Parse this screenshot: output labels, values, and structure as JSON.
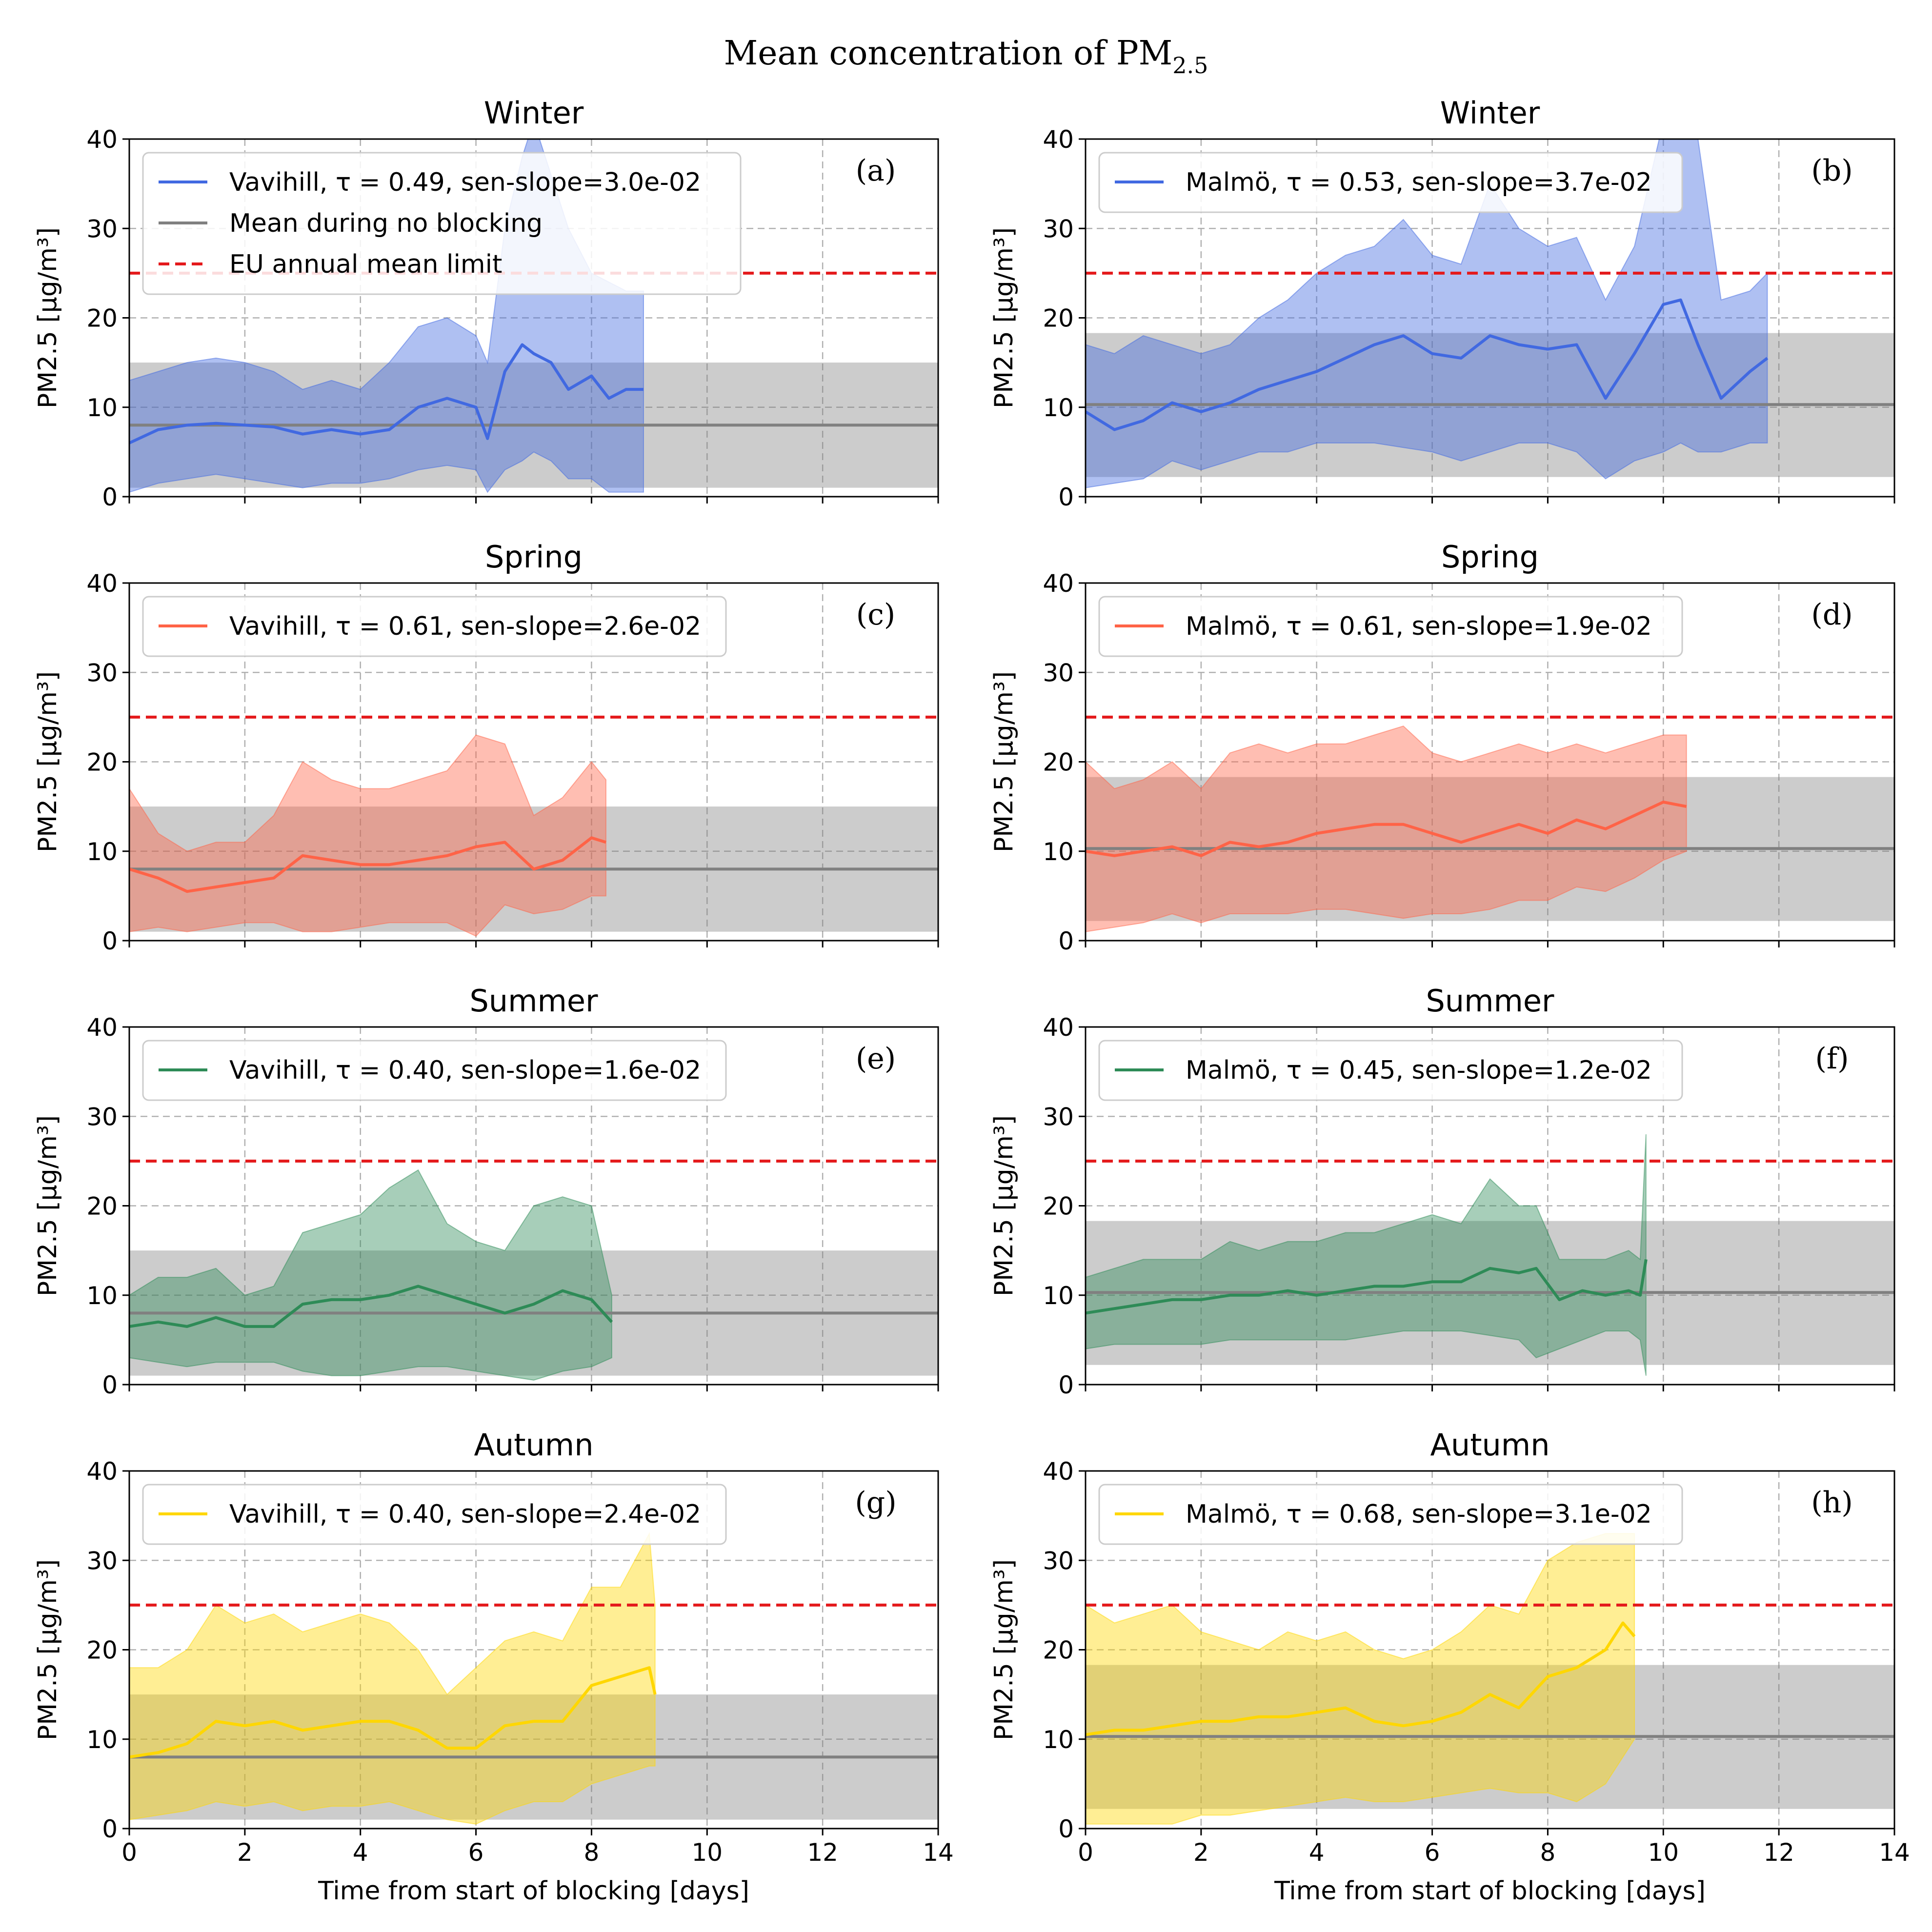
{
  "figure": {
    "suptitle": "Mean concentration of PM",
    "suptitle_sub": "2.5"
  },
  "colors": {
    "winter": "#4169e1",
    "spring": "#ff6347",
    "summer": "#2e8b57",
    "autumn": "#ffd700",
    "no_blocking": "#808080",
    "eu_limit": "#e41a1c"
  },
  "chart_data": [
    {
      "type": "line",
      "panel": "(a)",
      "title": "Winter",
      "season": "winter",
      "station": "Vavihill",
      "legend": [
        "Vavihill, τ = 0.49, sen-slope=3.0e-02",
        "Mean during no blocking",
        "EU annual mean limit"
      ],
      "ylabel": "PM2.5 [µg/m³]",
      "xlabel": "",
      "xlim": [
        0,
        14
      ],
      "ylim": [
        0,
        40
      ],
      "xticks": [
        "0",
        "2",
        "4",
        "6",
        "8",
        "10",
        "12",
        "14"
      ],
      "yticks": [
        "0",
        "10",
        "20",
        "30",
        "40"
      ],
      "no_blocking_mean": 8.0,
      "no_blocking_band": [
        1.0,
        15.0
      ],
      "eu_limit": 25,
      "mean_x": [
        0,
        0.5,
        1,
        1.5,
        2,
        2.5,
        3,
        3.5,
        4,
        4.5,
        5,
        5.5,
        6,
        6.2,
        6.5,
        6.8,
        7,
        7.3,
        7.6,
        8,
        8.3,
        8.6,
        8.9
      ],
      "mean_y": [
        6,
        7.5,
        8,
        8.2,
        8,
        7.8,
        7,
        7.5,
        7,
        7.5,
        10,
        11,
        10,
        6.5,
        14,
        17,
        16,
        15,
        12,
        13.5,
        11,
        12,
        12
      ],
      "upper_y": [
        13,
        14,
        15,
        15.5,
        15,
        14,
        12,
        13,
        12,
        15,
        19,
        20,
        18,
        15,
        30,
        38,
        42,
        36,
        30,
        25,
        24,
        23,
        23
      ],
      "lower_y": [
        0.5,
        1.5,
        2,
        2.5,
        2,
        1.5,
        1,
        1.5,
        1.5,
        2,
        3,
        3.5,
        3,
        0.5,
        3,
        4,
        5,
        4,
        2,
        2,
        0.5,
        0.5,
        0.5
      ]
    },
    {
      "type": "line",
      "panel": "(b)",
      "title": "Winter",
      "season": "winter",
      "station": "Malmö",
      "legend": [
        "Malmö, τ = 0.53, sen-slope=3.7e-02"
      ],
      "ylabel": "PM2.5 [µg/m³]",
      "xlabel": "",
      "xlim": [
        0,
        14
      ],
      "ylim": [
        0,
        40
      ],
      "xticks": [
        "0",
        "2",
        "4",
        "6",
        "8",
        "10",
        "12",
        "14"
      ],
      "yticks": [
        "0",
        "10",
        "20",
        "30",
        "40"
      ],
      "no_blocking_mean": 10.3,
      "no_blocking_band": [
        2.2,
        18.3
      ],
      "eu_limit": 25,
      "mean_x": [
        0,
        0.5,
        1,
        1.5,
        2,
        2.5,
        3,
        3.5,
        4,
        4.5,
        5,
        5.5,
        6,
        6.5,
        7,
        7.5,
        8,
        8.5,
        9,
        9.5,
        10,
        10.3,
        10.6,
        11,
        11.5,
        11.8
      ],
      "mean_y": [
        9.5,
        7.5,
        8.5,
        10.5,
        9.5,
        10.5,
        12,
        13,
        14,
        15.5,
        17,
        18,
        16,
        15.5,
        18,
        17,
        16.5,
        17,
        11,
        16,
        21.5,
        22,
        17,
        11,
        14,
        15.5
      ],
      "upper_y": [
        17,
        16,
        18,
        17,
        16,
        17,
        20,
        22,
        25,
        27,
        28,
        31,
        27,
        26,
        35,
        30,
        28,
        29,
        22,
        28,
        42,
        44,
        40,
        22,
        23,
        25
      ],
      "lower_y": [
        1,
        1.5,
        2,
        4,
        3,
        4,
        5,
        5,
        6,
        6,
        6,
        5.5,
        5,
        4,
        5,
        6,
        6,
        5,
        2,
        4,
        5,
        6,
        5,
        5,
        6,
        6
      ]
    },
    {
      "type": "line",
      "panel": "(c)",
      "title": "Spring",
      "season": "spring",
      "station": "Vavihill",
      "legend": [
        "Vavihill, τ = 0.61, sen-slope=2.6e-02"
      ],
      "ylabel": "PM2.5 [µg/m³]",
      "xlabel": "",
      "xlim": [
        0,
        14
      ],
      "ylim": [
        0,
        40
      ],
      "xticks": [
        "0",
        "2",
        "4",
        "6",
        "8",
        "10",
        "12",
        "14"
      ],
      "yticks": [
        "0",
        "10",
        "20",
        "30",
        "40"
      ],
      "no_blocking_mean": 8.0,
      "no_blocking_band": [
        1.0,
        15.0
      ],
      "eu_limit": 25,
      "mean_x": [
        0,
        0.5,
        1,
        1.5,
        2,
        2.5,
        3,
        3.5,
        4,
        4.5,
        5,
        5.5,
        6,
        6.5,
        7,
        7.5,
        8,
        8.25
      ],
      "mean_y": [
        8,
        7,
        5.5,
        6,
        6.5,
        7,
        9.5,
        9,
        8.5,
        8.5,
        9,
        9.5,
        10.5,
        11,
        8,
        9,
        11.5,
        11
      ],
      "upper_y": [
        17,
        12,
        10,
        11,
        11,
        14,
        20,
        18,
        17,
        17,
        18,
        19,
        23,
        22,
        14,
        16,
        20,
        18
      ],
      "lower_y": [
        1,
        1.5,
        1,
        1.5,
        2,
        2,
        1,
        1,
        1.5,
        2,
        2,
        2,
        0.5,
        4,
        3,
        3.5,
        5,
        5
      ]
    },
    {
      "type": "line",
      "panel": "(d)",
      "title": "Spring",
      "season": "spring",
      "station": "Malmö",
      "legend": [
        "Malmö, τ = 0.61, sen-slope=1.9e-02"
      ],
      "ylabel": "PM2.5 [µg/m³]",
      "xlabel": "",
      "xlim": [
        0,
        14
      ],
      "ylim": [
        0,
        40
      ],
      "xticks": [
        "0",
        "2",
        "4",
        "6",
        "8",
        "10",
        "12",
        "14"
      ],
      "yticks": [
        "0",
        "10",
        "20",
        "30",
        "40"
      ],
      "no_blocking_mean": 10.3,
      "no_blocking_band": [
        2.2,
        18.3
      ],
      "eu_limit": 25,
      "mean_x": [
        0,
        0.5,
        1,
        1.5,
        2,
        2.5,
        3,
        3.5,
        4,
        4.5,
        5,
        5.5,
        6,
        6.5,
        7,
        7.5,
        8,
        8.5,
        9,
        9.5,
        10,
        10.4
      ],
      "mean_y": [
        10,
        9.5,
        10,
        10.5,
        9.5,
        11,
        10.5,
        11,
        12,
        12.5,
        13,
        13,
        12,
        11,
        12,
        13,
        12,
        13.5,
        12.5,
        14,
        15.5,
        15
      ],
      "upper_y": [
        20,
        17,
        18,
        20,
        17,
        21,
        22,
        21,
        22,
        22,
        23,
        24,
        21,
        20,
        21,
        22,
        21,
        22,
        21,
        22,
        23,
        23
      ],
      "lower_y": [
        1,
        1.5,
        2,
        3,
        2,
        3,
        3,
        3,
        3.5,
        3.5,
        3,
        2.5,
        3,
        3,
        3.5,
        4.5,
        4.5,
        6,
        5.5,
        7,
        9,
        10
      ]
    },
    {
      "type": "line",
      "panel": "(e)",
      "title": "Summer",
      "season": "summer",
      "station": "Vavihill",
      "legend": [
        "Vavihill, τ = 0.40, sen-slope=1.6e-02"
      ],
      "ylabel": "PM2.5 [µg/m³]",
      "xlabel": "",
      "xlim": [
        0,
        14
      ],
      "ylim": [
        0,
        40
      ],
      "xticks": [
        "0",
        "2",
        "4",
        "6",
        "8",
        "10",
        "12",
        "14"
      ],
      "yticks": [
        "0",
        "10",
        "20",
        "30",
        "40"
      ],
      "no_blocking_mean": 8.0,
      "no_blocking_band": [
        1.0,
        15.0
      ],
      "eu_limit": 25,
      "mean_x": [
        0,
        0.5,
        1,
        1.5,
        2,
        2.5,
        3,
        3.5,
        4,
        4.5,
        5,
        5.5,
        6,
        6.5,
        7,
        7.5,
        8,
        8.35
      ],
      "mean_y": [
        6.5,
        7,
        6.5,
        7.5,
        6.5,
        6.5,
        9,
        9.5,
        9.5,
        10,
        11,
        10,
        9,
        8,
        9,
        10.5,
        9.5,
        7
      ],
      "upper_y": [
        10,
        12,
        12,
        13,
        10,
        11,
        17,
        18,
        19,
        22,
        24,
        18,
        16,
        15,
        20,
        21,
        20,
        10
      ],
      "lower_y": [
        3,
        2.5,
        2,
        2.5,
        2.5,
        2.5,
        1.5,
        1,
        1,
        1.5,
        2,
        2,
        1.5,
        1,
        0.5,
        1.5,
        2,
        3
      ]
    },
    {
      "type": "line",
      "panel": "(f)",
      "title": "Summer",
      "season": "summer",
      "station": "Malmö",
      "legend": [
        "Malmö, τ = 0.45, sen-slope=1.2e-02"
      ],
      "ylabel": "PM2.5 [µg/m³]",
      "xlabel": "",
      "xlim": [
        0,
        14
      ],
      "ylim": [
        0,
        40
      ],
      "xticks": [
        "0",
        "2",
        "4",
        "6",
        "8",
        "10",
        "12",
        "14"
      ],
      "yticks": [
        "0",
        "10",
        "20",
        "30",
        "40"
      ],
      "no_blocking_mean": 10.3,
      "no_blocking_band": [
        2.2,
        18.3
      ],
      "eu_limit": 25,
      "mean_x": [
        0,
        0.5,
        1,
        1.5,
        2,
        2.5,
        3,
        3.5,
        4,
        4.5,
        5,
        5.5,
        6,
        6.5,
        7,
        7.5,
        7.8,
        8.2,
        8.6,
        9,
        9.4,
        9.6,
        9.7
      ],
      "mean_y": [
        8,
        8.5,
        9,
        9.5,
        9.5,
        10,
        10,
        10.5,
        10,
        10.5,
        11,
        11,
        11.5,
        11.5,
        13,
        12.5,
        13,
        9.5,
        10.5,
        10,
        10.5,
        10,
        14
      ],
      "upper_y": [
        12,
        13,
        14,
        14,
        14,
        16,
        15,
        16,
        16,
        17,
        17,
        18,
        19,
        18,
        23,
        20,
        20,
        14,
        14,
        14,
        15,
        14,
        28
      ],
      "lower_y": [
        4,
        4.5,
        4.5,
        4.5,
        4.5,
        5,
        5,
        5,
        5,
        5,
        5.5,
        6,
        6,
        6,
        5.5,
        5,
        3,
        4,
        5,
        6,
        6,
        5,
        1
      ]
    },
    {
      "type": "line",
      "panel": "(g)",
      "title": "Autumn",
      "season": "autumn",
      "station": "Vavihill",
      "legend": [
        "Vavihill, τ = 0.40, sen-slope=2.4e-02"
      ],
      "ylabel": "PM2.5 [µg/m³]",
      "xlabel": "Time from start of blocking [days]",
      "xlim": [
        0,
        14
      ],
      "ylim": [
        0,
        40
      ],
      "xticks": [
        "0",
        "2",
        "4",
        "6",
        "8",
        "10",
        "12",
        "14"
      ],
      "yticks": [
        "0",
        "10",
        "20",
        "30",
        "40"
      ],
      "no_blocking_mean": 8.0,
      "no_blocking_band": [
        1.0,
        15.0
      ],
      "eu_limit": 25,
      "mean_x": [
        0,
        0.5,
        1,
        1.5,
        2,
        2.5,
        3,
        3.5,
        4,
        4.5,
        5,
        5.5,
        6,
        6.5,
        7,
        7.5,
        8,
        8.5,
        9,
        9.1
      ],
      "mean_y": [
        8,
        8.5,
        9.5,
        12,
        11.5,
        12,
        11,
        11.5,
        12,
        12,
        11,
        9,
        9,
        11.5,
        12,
        12,
        16,
        17,
        18,
        15
      ],
      "upper_y": [
        18,
        18,
        20,
        25,
        23,
        24,
        22,
        23,
        24,
        23,
        20,
        15,
        18,
        21,
        22,
        21,
        27,
        27,
        33,
        25
      ],
      "lower_y": [
        1,
        1.5,
        2,
        3,
        2.5,
        3,
        2,
        2.5,
        2.5,
        3,
        2,
        1,
        0.5,
        2,
        3,
        3,
        5,
        6,
        7,
        7
      ]
    },
    {
      "type": "line",
      "panel": "(h)",
      "title": "Autumn",
      "season": "autumn",
      "station": "Malmö",
      "legend": [
        "Malmö, τ = 0.68, sen-slope=3.1e-02"
      ],
      "ylabel": "PM2.5 [µg/m³]",
      "xlabel": "Time from start of blocking [days]",
      "xlim": [
        0,
        14
      ],
      "ylim": [
        0,
        40
      ],
      "xticks": [
        "0",
        "2",
        "4",
        "6",
        "8",
        "10",
        "12",
        "14"
      ],
      "yticks": [
        "0",
        "10",
        "20",
        "30",
        "40"
      ],
      "no_blocking_mean": 10.3,
      "no_blocking_band": [
        2.2,
        18.3
      ],
      "eu_limit": 25,
      "mean_x": [
        0,
        0.5,
        1,
        1.5,
        2,
        2.5,
        3,
        3.5,
        4,
        4.5,
        5,
        5.5,
        6,
        6.5,
        7,
        7.5,
        8,
        8.5,
        9,
        9.3,
        9.5
      ],
      "mean_y": [
        10.5,
        11,
        11,
        11.5,
        12,
        12,
        12.5,
        12.5,
        13,
        13.5,
        12,
        11.5,
        12,
        13,
        15,
        13.5,
        17,
        18,
        20,
        23,
        21.5
      ],
      "upper_y": [
        25,
        23,
        24,
        25,
        22,
        21,
        20,
        22,
        21,
        22,
        20,
        19,
        20,
        22,
        25,
        24,
        30,
        32,
        33,
        33,
        33
      ],
      "lower_y": [
        0.5,
        0.5,
        0.5,
        0.5,
        1.5,
        1.5,
        2,
        2.5,
        3,
        3.5,
        3,
        3,
        3.5,
        4,
        4.5,
        4,
        4,
        3,
        5,
        8,
        10
      ]
    }
  ]
}
